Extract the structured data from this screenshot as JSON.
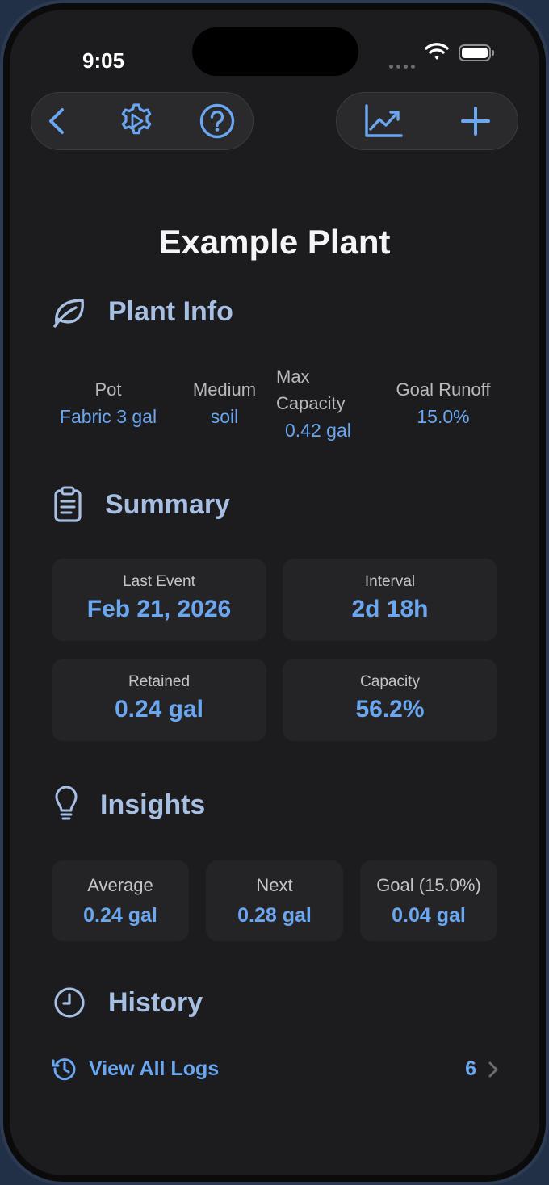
{
  "status_bar": {
    "time": "9:05"
  },
  "toolbar": {
    "back_icon": "chevron-left-icon",
    "settings_icon": "gear-icon",
    "help_icon": "question-mark-circle-icon",
    "chart_icon": "line-chart-icon",
    "add_icon": "plus-icon"
  },
  "page": {
    "title": "Example Plant"
  },
  "plant_info": {
    "heading": "Plant Info",
    "icon": "leaf-icon",
    "fields": [
      {
        "label": "Pot",
        "value": "Fabric 3 gal"
      },
      {
        "label": "Medium",
        "value": "soil"
      },
      {
        "label_line1": "Max",
        "label_line2": "Capacity",
        "value": "0.42 gal"
      },
      {
        "label": "Goal Runoff",
        "value": "15.0%"
      }
    ]
  },
  "summary": {
    "heading": "Summary",
    "icon": "clipboard-icon",
    "cards": [
      {
        "label": "Last Event",
        "value": "Feb 21, 2026"
      },
      {
        "label": "Interval",
        "value": "2d 18h"
      },
      {
        "label": "Retained",
        "value": "0.24 gal"
      },
      {
        "label": "Capacity",
        "value": "56.2%"
      }
    ]
  },
  "insights": {
    "heading": "Insights",
    "icon": "lightbulb-icon",
    "cards": [
      {
        "label": "Average",
        "value": "0.24 gal"
      },
      {
        "label": "Next",
        "value": "0.28 gal"
      },
      {
        "label": "Goal (15.0%)",
        "value": "0.04 gal"
      }
    ]
  },
  "history": {
    "heading": "History",
    "icon": "clock-icon",
    "view_all_label": "View All Logs",
    "view_all_icon": "history-icon",
    "count": "6"
  },
  "colors": {
    "accent": "#6aa7f0",
    "heading": "#a7bfe2",
    "background": "#1c1c1e",
    "card": "#242427"
  }
}
